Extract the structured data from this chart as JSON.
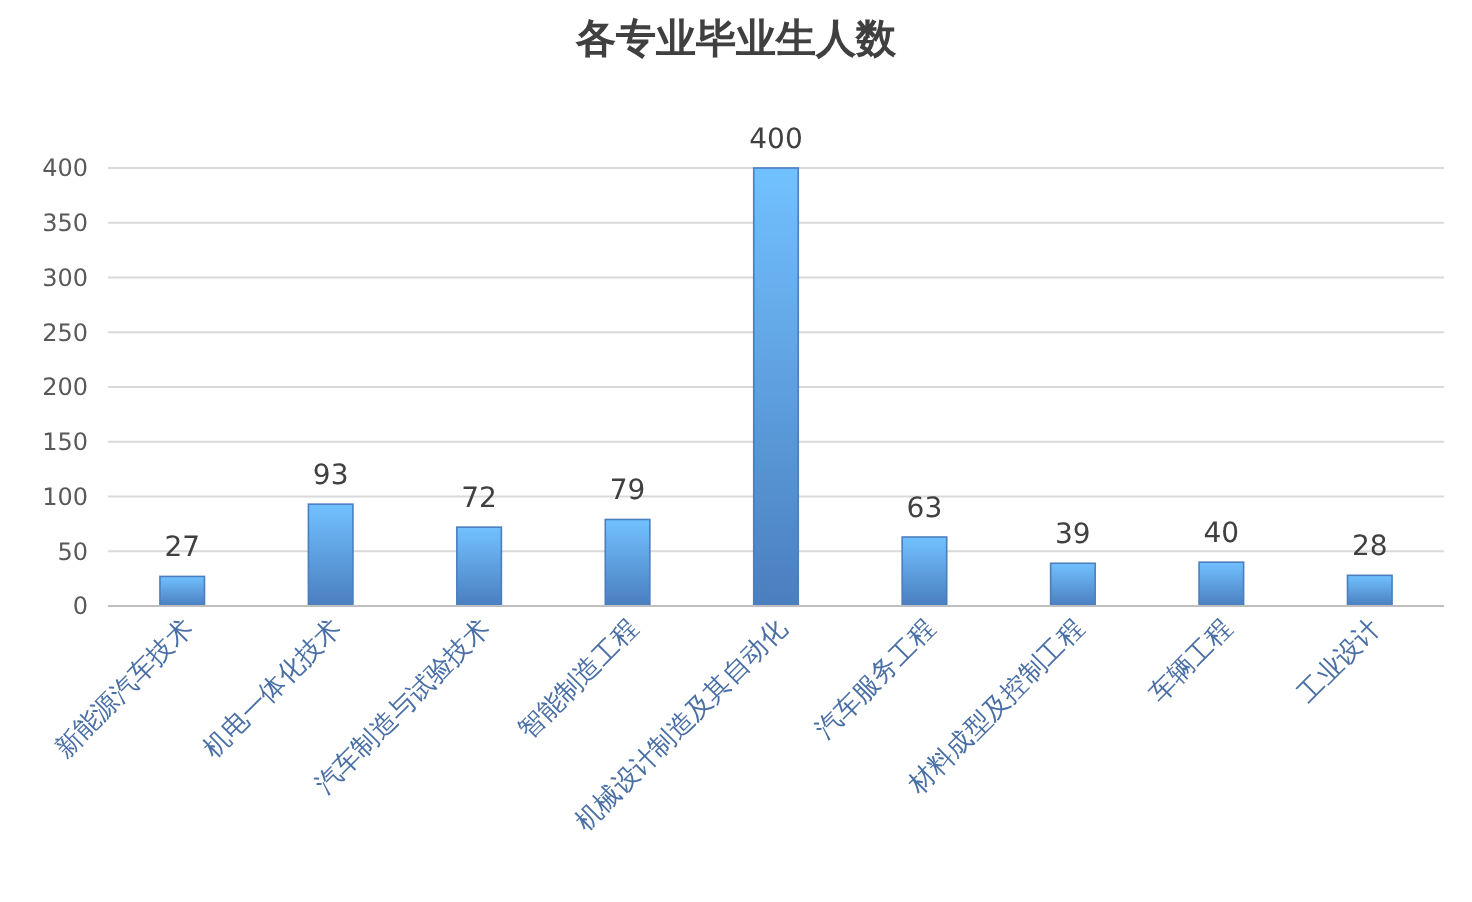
{
  "chart_data": {
    "type": "bar",
    "title": "各专业毕业生人数",
    "categories": [
      "新能源汽车技术",
      "机电一体化技术",
      "汽车制造与试验技术",
      "智能制造工程",
      "机械设计制造及其自动化",
      "汽车服务工程",
      "材料成型及控制工程",
      "车辆工程",
      "工业设计"
    ],
    "values": [
      27,
      93,
      72,
      79,
      400,
      63,
      39,
      40,
      28
    ],
    "color": "#4a7ebf",
    "ylim": [
      0,
      400
    ],
    "yticks": [
      0,
      50,
      100,
      150,
      200,
      250,
      300,
      350,
      400
    ],
    "grid": "y",
    "data_labels": true
  }
}
